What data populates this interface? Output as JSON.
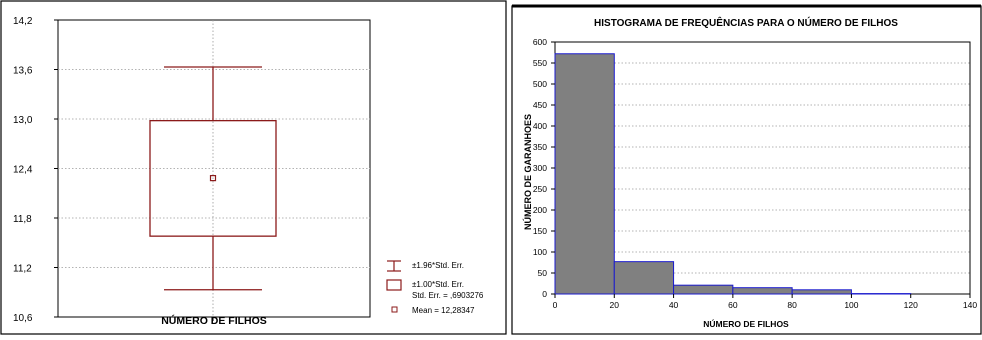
{
  "chart_data": [
    {
      "type": "box",
      "title": "",
      "xlabel": "NÚMERO DE FILHOS",
      "ylabel": "",
      "ylim": [
        10.6,
        14.2
      ],
      "y_ticks": [
        "10,6",
        "11,2",
        "11,8",
        "12,4",
        "13,0",
        "13,6",
        "14,2"
      ],
      "y_tick_values": [
        10.6,
        11.2,
        11.8,
        12.4,
        13.0,
        13.6,
        14.2
      ],
      "mean": 12.28347,
      "box_low": 11.58,
      "box_high": 12.98,
      "whisker_low": 10.93,
      "whisker_high": 13.63,
      "grid": true,
      "legend": {
        "position": "right",
        "entries": [
          {
            "symbol": "whisker",
            "label": "±1.96*Std. Err."
          },
          {
            "symbol": "box",
            "label": "±1.00*Std. Err.",
            "label2": "Std. Err. = ,6903276"
          },
          {
            "symbol": "square",
            "label": "Mean = 12,28347"
          }
        ]
      },
      "colors": {
        "stroke": "#8b1a1a",
        "axis": "#000000",
        "grid": "#9a9a9a"
      }
    },
    {
      "type": "bar",
      "title": "HISTOGRAMA DE FREQUÊNCIAS PARA O NÚMERO DE FILHOS",
      "xlabel": "NÚMERO DE FILHOS",
      "ylabel": "NÚMERO DE GARANHOES",
      "xlim": [
        0,
        140
      ],
      "ylim": [
        0,
        600
      ],
      "x_ticks": [
        "0",
        "20",
        "40",
        "60",
        "80",
        "100",
        "120",
        "140"
      ],
      "x_tick_values": [
        0,
        20,
        40,
        60,
        80,
        100,
        120,
        140
      ],
      "y_ticks": [
        "0",
        "50",
        "100",
        "150",
        "200",
        "250",
        "300",
        "350",
        "400",
        "450",
        "500",
        "550",
        "600"
      ],
      "y_tick_values": [
        0,
        50,
        100,
        150,
        200,
        250,
        300,
        350,
        400,
        450,
        500,
        550,
        600
      ],
      "bins": [
        {
          "x0": 0,
          "x1": 20,
          "value": 572
        },
        {
          "x0": 20,
          "x1": 40,
          "value": 77
        },
        {
          "x0": 40,
          "x1": 60,
          "value": 21
        },
        {
          "x0": 60,
          "x1": 80,
          "value": 15
        },
        {
          "x0": 80,
          "x1": 100,
          "value": 10
        },
        {
          "x0": 100,
          "x1": 120,
          "value": 1
        },
        {
          "x0": 120,
          "x1": 140,
          "value": 0
        }
      ],
      "grid": true,
      "colors": {
        "fill": "#808080",
        "stroke": "#1a1acd",
        "axis": "#000000",
        "grid": "#9a9a9a"
      }
    }
  ]
}
